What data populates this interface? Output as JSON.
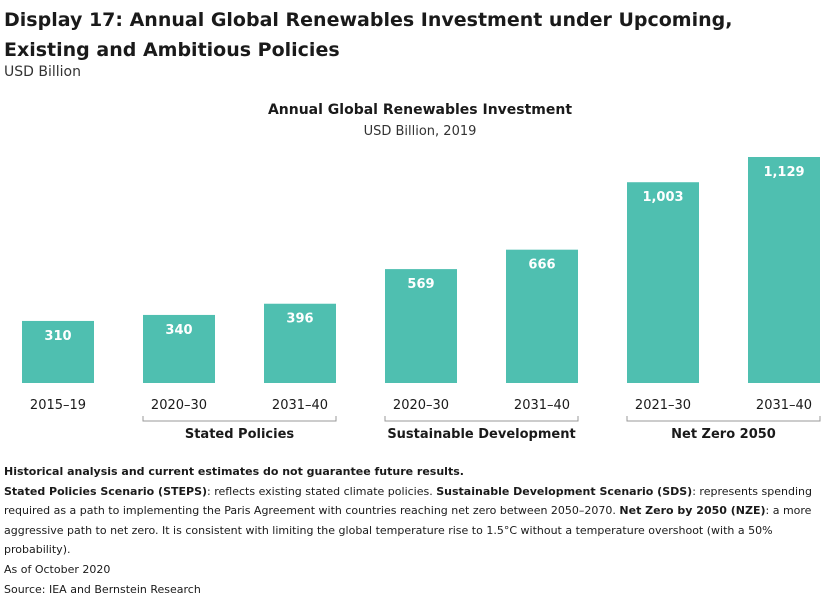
{
  "header": {
    "title": "Display 17: Annual Global Renewables Investment under Upcoming, Existing and Ambitious Policies",
    "unit": "USD Billion"
  },
  "chart_data": {
    "type": "bar",
    "title": "Annual Global Renewables Investment",
    "subtitle": "USD Billion, 2019",
    "xlabel": "",
    "ylabel": "",
    "ylim": [
      0,
      1129
    ],
    "grid": false,
    "bar_color": "#4fbfb0",
    "label_color": "#ffffff",
    "bracket_color": "#999999",
    "categories": [
      "2015–19",
      "2020–30",
      "2031–40",
      "2020–30",
      "2031–40",
      "2021–30",
      "2031–40"
    ],
    "values": [
      310,
      340,
      396,
      569,
      666,
      1003,
      1129
    ],
    "value_labels": [
      "310",
      "340",
      "396",
      "569",
      "666",
      "1,003",
      "1,129"
    ],
    "groups": [
      {
        "name": "Stated Policies",
        "categories": [
          1,
          2
        ]
      },
      {
        "name": "Sustainable Development",
        "categories": [
          3,
          4
        ]
      },
      {
        "name": "Net Zero 2050",
        "categories": [
          5,
          6
        ]
      }
    ]
  },
  "notes": {
    "disclaimer": "Historical analysis and current estimates do not guarantee future results.",
    "steps_term": "Stated Policies Scenario (STEPS)",
    "steps_text": ": reflects existing stated climate policies. ",
    "sds_term": "Sustainable Development Scenario (SDS)",
    "sds_text": ": represents spending required as a path to implementing the Paris Agreement with countries reaching net zero between 2050–2070. ",
    "nze_term": "Net Zero by 2050 (NZE)",
    "nze_text": ": a more aggressive path to net zero. It is consistent with limiting the global temperature rise to 1.5°C without a temperature overshoot (with a 50% probability).",
    "as_of": "As of October 2020",
    "source": "Source: IEA and Bernstein Research"
  }
}
